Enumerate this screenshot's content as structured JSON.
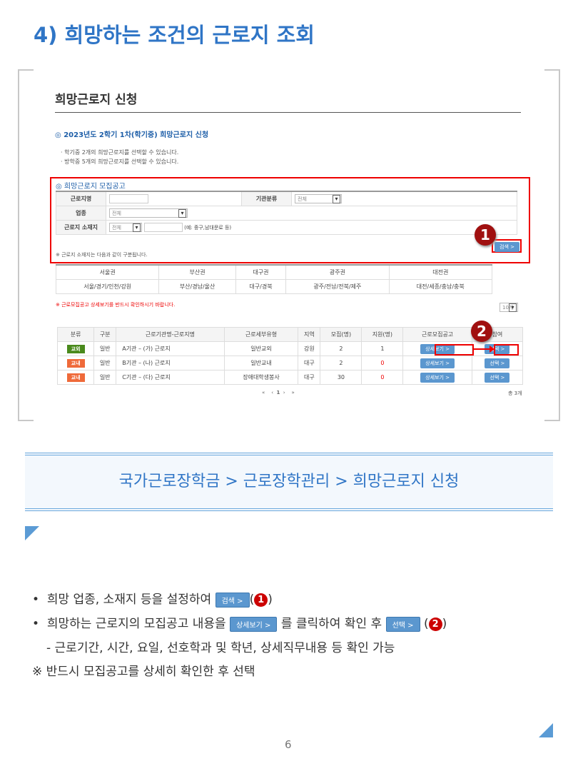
{
  "page_title": "4) 희망하는 조건의 근로지 조회",
  "screenshot": {
    "title": "희망근로지 신청",
    "subtitle": "2023년도 2학기 1차(학기중) 희망근로지 신청",
    "notes": [
      "학기중 2개의 희망근로지를 선택할 수 있습니다.",
      "방학중 5개의 희망근로지를 선택할 수 있습니다."
    ],
    "search": {
      "heading": "희망근로지 모집공고",
      "label_name": "근로지명",
      "label_org": "기관분류",
      "org_value": "전체",
      "label_type": "업종",
      "type_value": "전체",
      "label_loc": "근로지 소재지",
      "loc_value": "전체",
      "loc_hint": "(예: 중구,남대문로 등)",
      "search_btn": "검색 >",
      "footnote": "※ 근로지 소재지는 다음과 같이 구분됩니다."
    },
    "regions": {
      "headers": [
        "서울권",
        "부산권",
        "대구권",
        "광주권",
        "대전권"
      ],
      "values": [
        "서울/경기/인천/강원",
        "부산/경남/울산",
        "대구/경북",
        "광주/전남/전북/제주",
        "대전/세종/충남/충북"
      ]
    },
    "warning": "※ 근로모집공고 상세보기를 반드시 확인하시기 바랍니다.",
    "page_size": "10개",
    "table": {
      "headers": [
        "분류",
        "구분",
        "근로기관명-근로지명",
        "근로세부유형",
        "지역",
        "모집(명)",
        "지원(명)",
        "근로모집공고",
        "참여"
      ],
      "rows": [
        {
          "badge": "교외",
          "badge_color": "#4a8a1c",
          "kind": "일반",
          "name": "A기관 – (가) 근로지",
          "type": "일반교외",
          "region": "강원",
          "recruit": "2",
          "applied": "1",
          "detail": "상세보기 >",
          "select": "선택 >"
        },
        {
          "badge": "교내",
          "badge_color": "#ef6a3a",
          "kind": "일반",
          "name": "B기관 – (나) 근로지",
          "type": "일반교내",
          "region": "대구",
          "recruit": "2",
          "applied": "0",
          "detail": "상세보기 >",
          "select": "선택 >"
        },
        {
          "badge": "교내",
          "badge_color": "#ef6a3a",
          "kind": "일반",
          "name": "C기관 – (다) 근로지",
          "type": "장애대학생봉사",
          "region": "대구",
          "recruit": "30",
          "applied": "0",
          "detail": "상세보기 >",
          "select": "선택 >"
        }
      ]
    },
    "pagination": {
      "first": "«",
      "prev": "‹",
      "current": "1",
      "next": "›",
      "last": "»"
    },
    "total": "총 3개",
    "markers": [
      "1",
      "2"
    ]
  },
  "breadcrumb": "국가근로장학금 > 근로장학관리 > 희망근로지 신청",
  "bullets": {
    "b1_pre": "희망 업종, 소재지 등을 설정하여",
    "b1_btn": "검색 >",
    "b1_num": "1",
    "b2_pre": "희망하는 근로지의 모집공고 내용을",
    "b2_btn1": "상세보기 >",
    "b2_mid": "를 클릭하여 확인 후",
    "b2_btn2": "선택 >",
    "b2_num": "2",
    "sub": "- 근로기간, 시간, 요일, 선호학과 및 학년, 상세직무내용 등 확인 가능",
    "warn": "※ 반드시 모집공고를 상세히 확인한 후 선택"
  },
  "page_number": "6",
  "colors": {
    "accent": "#2f75c6",
    "warn": "#e00000",
    "button": "#5b97cf"
  }
}
